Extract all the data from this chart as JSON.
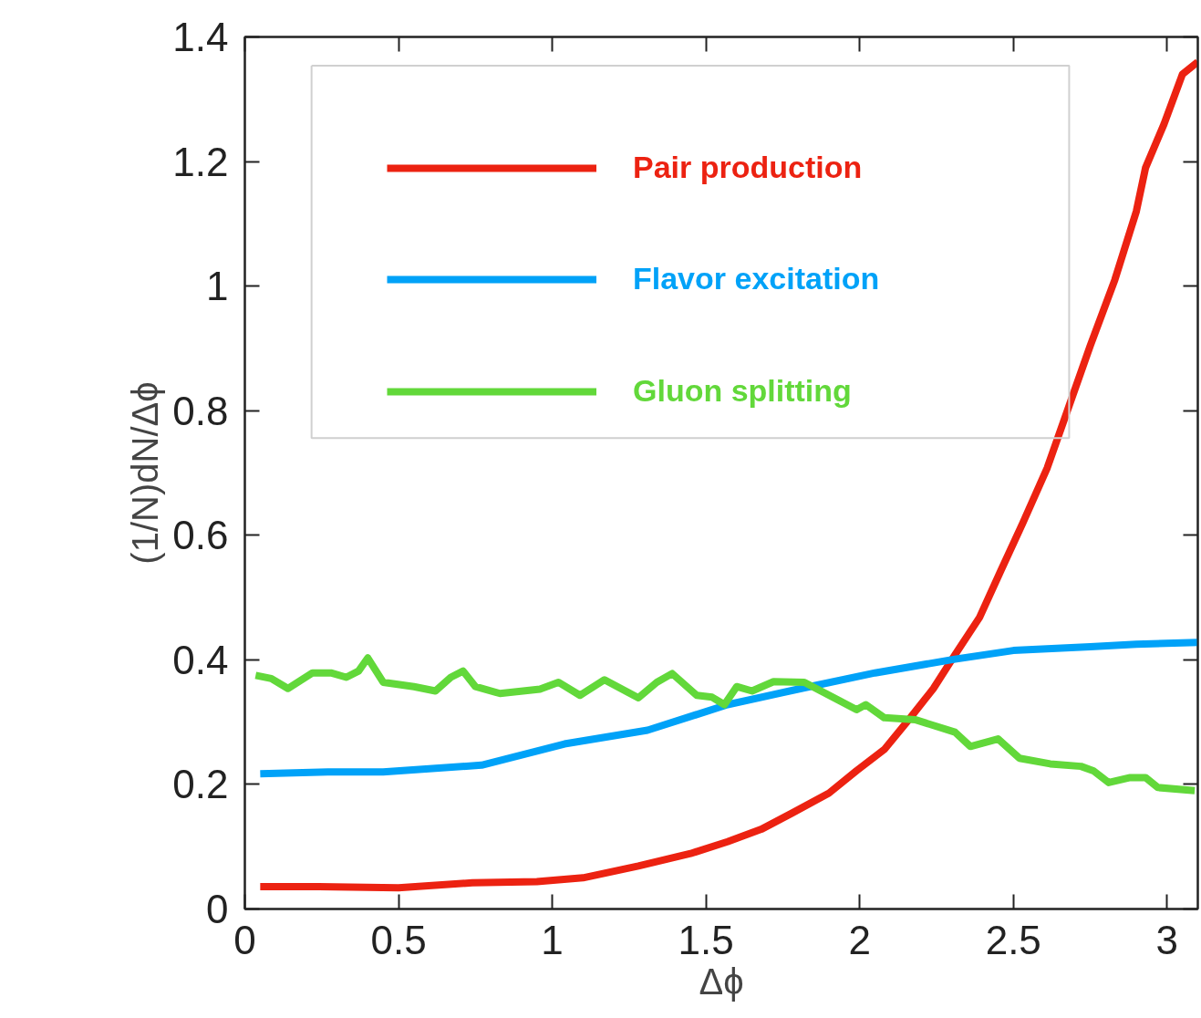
{
  "chart_data": {
    "type": "line",
    "xlabel": "Δϕ",
    "ylabel": "(1/N)dN/Δϕ",
    "xlim": [
      0,
      3.1
    ],
    "ylim": [
      0,
      1.4
    ],
    "xticks": [
      0,
      0.5,
      1,
      1.5,
      2,
      2.5,
      3
    ],
    "yticks": [
      0,
      0.2,
      0.4,
      0.6,
      0.8,
      1,
      1.2,
      1.4
    ],
    "grid": false,
    "legend": "top left",
    "line_style": "solid",
    "marker": "none",
    "series": [
      {
        "name": "Pair production",
        "color": "#ec2211",
        "x": [
          0.05,
          0.24,
          0.5,
          0.74,
          0.95,
          1.1,
          1.28,
          1.45,
          1.57,
          1.68,
          1.78,
          1.9,
          1.99,
          2.08,
          2.16,
          2.24,
          2.31,
          2.39,
          2.46,
          2.53,
          2.61,
          2.68,
          2.75,
          2.83,
          2.9,
          2.93,
          2.99,
          3.05,
          3.1
        ],
        "values": [
          0.036,
          0.036,
          0.034,
          0.042,
          0.044,
          0.05,
          0.069,
          0.089,
          0.108,
          0.128,
          0.154,
          0.186,
          0.222,
          0.256,
          0.304,
          0.354,
          0.408,
          0.468,
          0.544,
          0.619,
          0.708,
          0.806,
          0.904,
          1.01,
          1.12,
          1.19,
          1.26,
          1.34,
          1.36
        ]
      },
      {
        "name": "Flavor excitation",
        "color": "#00a2f8",
        "x": [
          0.05,
          0.27,
          0.45,
          0.77,
          1.04,
          1.31,
          1.57,
          1.81,
          2.05,
          2.31,
          2.5,
          2.75,
          2.9,
          3.1
        ],
        "values": [
          0.217,
          0.22,
          0.22,
          0.231,
          0.265,
          0.287,
          0.328,
          0.354,
          0.379,
          0.401,
          0.415,
          0.421,
          0.425,
          0.428
        ]
      },
      {
        "name": "Gluon splitting",
        "color": "#62d83a",
        "x": [
          0.035,
          0.086,
          0.14,
          0.22,
          0.28,
          0.33,
          0.37,
          0.4,
          0.45,
          0.55,
          0.62,
          0.67,
          0.71,
          0.75,
          0.83,
          0.96,
          1.02,
          1.09,
          1.17,
          1.28,
          1.34,
          1.39,
          1.47,
          1.52,
          1.56,
          1.6,
          1.65,
          1.72,
          1.82,
          1.99,
          2.02,
          2.08,
          2.18,
          2.31,
          2.36,
          2.45,
          2.52,
          2.62,
          2.72,
          2.76,
          2.81,
          2.88,
          2.93,
          2.97,
          3.09
        ],
        "values": [
          0.375,
          0.37,
          0.354,
          0.379,
          0.379,
          0.372,
          0.382,
          0.403,
          0.364,
          0.357,
          0.35,
          0.372,
          0.382,
          0.357,
          0.346,
          0.353,
          0.364,
          0.343,
          0.368,
          0.339,
          0.364,
          0.378,
          0.343,
          0.34,
          0.328,
          0.357,
          0.35,
          0.365,
          0.364,
          0.32,
          0.328,
          0.307,
          0.304,
          0.284,
          0.261,
          0.273,
          0.242,
          0.233,
          0.229,
          0.222,
          0.203,
          0.211,
          0.211,
          0.195,
          0.19
        ]
      }
    ]
  }
}
